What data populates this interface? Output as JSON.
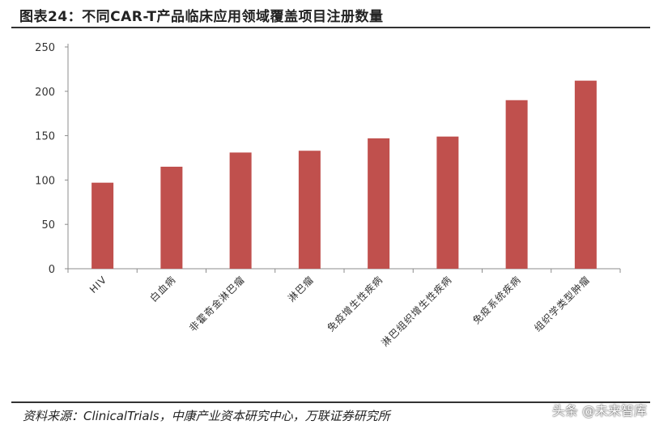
{
  "figure": {
    "title": "图表24：不同CAR-T产品临床应用领域覆盖项目注册数量",
    "source": "资料来源：ClinicalTrials，中康产业资本研究中心，万联证券研究所",
    "watermark": "头条 @未来智库"
  },
  "chart_data": {
    "type": "bar",
    "title": "",
    "xlabel": "",
    "ylabel": "",
    "ylim": [
      0,
      250
    ],
    "yticks": [
      0,
      50,
      100,
      150,
      200,
      250
    ],
    "categories": [
      "HIV",
      "白血病",
      "非霍奇金淋巴瘤",
      "淋巴瘤",
      "免疫增生性疾病",
      "淋巴组织增生性疾病",
      "免疫系统疾病",
      "组织学类型肿瘤"
    ],
    "values": [
      97,
      115,
      131,
      133,
      147,
      149,
      190,
      212
    ],
    "bar_color": "#c0504d",
    "grid": false,
    "legend": "none"
  }
}
